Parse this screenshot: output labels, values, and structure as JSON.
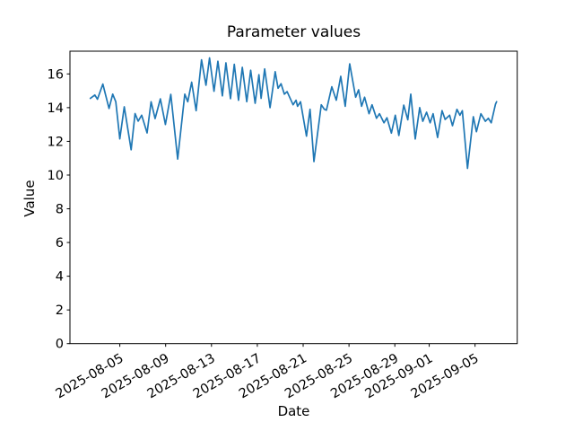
{
  "chart_data": {
    "type": "line",
    "title": "Parameter values",
    "xlabel": "Date",
    "ylabel": "Value",
    "line_color": "#1f77b4",
    "background_color": "#ffffff",
    "grid": false,
    "legend": "none",
    "x_axis": {
      "start_date": "2025-08-02",
      "xlim_days": [
        -1.35,
        37.68
      ],
      "ticks": [
        {
          "label": "2025-08-05",
          "offset_days": 3
        },
        {
          "label": "2025-08-09",
          "offset_days": 7
        },
        {
          "label": "2025-08-13",
          "offset_days": 11
        },
        {
          "label": "2025-08-17",
          "offset_days": 15
        },
        {
          "label": "2025-08-21",
          "offset_days": 19
        },
        {
          "label": "2025-08-25",
          "offset_days": 23
        },
        {
          "label": "2025-08-29",
          "offset_days": 27
        },
        {
          "label": "2025-09-01",
          "offset_days": 30
        },
        {
          "label": "2025-09-05",
          "offset_days": 34
        }
      ],
      "tick_label_rotation_deg": 30
    },
    "y_axis": {
      "ylim": [
        0,
        17.35
      ],
      "ticks": [
        0,
        2,
        4,
        6,
        8,
        10,
        12,
        14,
        16
      ]
    },
    "series": [
      {
        "name": "parameter-values",
        "t_days_from_start": [
          0.43,
          0.82,
          1.05,
          1.52,
          2.06,
          2.38,
          2.65,
          3.0,
          3.39,
          3.99,
          4.33,
          4.6,
          4.91,
          5.38,
          5.73,
          6.08,
          6.54,
          6.98,
          7.45,
          8.05,
          8.67,
          8.93,
          9.27,
          9.66,
          10.13,
          10.52,
          10.83,
          11.22,
          11.56,
          11.95,
          12.26,
          12.66,
          12.99,
          13.36,
          13.69,
          14.08,
          14.42,
          14.81,
          15.14,
          15.33,
          15.64,
          16.11,
          16.56,
          16.81,
          17.07,
          17.36,
          17.6,
          18.12,
          18.38,
          18.51,
          18.77,
          19.29,
          19.6,
          19.94,
          20.58,
          20.85,
          21.03,
          21.5,
          21.89,
          22.28,
          22.67,
          23.06,
          23.58,
          23.84,
          24.1,
          24.36,
          24.75,
          25.01,
          25.4,
          25.66,
          26.05,
          26.31,
          26.7,
          27.04,
          27.35,
          27.78,
          28.13,
          28.39,
          28.78,
          29.17,
          29.44,
          29.77,
          30.08,
          30.34,
          30.73,
          31.12,
          31.39,
          31.78,
          32.03,
          32.42,
          32.68,
          32.89,
          33.34,
          33.85,
          34.12,
          34.51,
          34.9,
          35.16,
          35.41,
          35.78,
          35.88
        ],
        "values": [
          14.55,
          14.75,
          14.5,
          15.4,
          13.95,
          14.8,
          14.35,
          12.15,
          14.05,
          11.5,
          13.65,
          13.2,
          13.55,
          12.5,
          14.35,
          13.35,
          14.52,
          13.0,
          14.79,
          10.95,
          14.8,
          14.35,
          15.51,
          13.82,
          16.84,
          15.33,
          16.95,
          14.97,
          16.75,
          14.7,
          16.66,
          14.53,
          16.57,
          14.44,
          16.39,
          14.35,
          16.22,
          14.26,
          15.95,
          14.55,
          16.3,
          14.0,
          16.13,
          15.15,
          15.42,
          14.8,
          14.95,
          14.17,
          14.44,
          14.08,
          14.35,
          12.31,
          13.9,
          10.8,
          14.17,
          13.9,
          13.85,
          15.24,
          14.44,
          15.86,
          14.08,
          16.6,
          14.62,
          15.06,
          14.08,
          14.62,
          13.64,
          14.17,
          13.37,
          13.64,
          13.1,
          13.4,
          12.49,
          13.55,
          12.35,
          14.15,
          13.28,
          14.8,
          12.14,
          14.0,
          13.19,
          13.73,
          13.1,
          13.64,
          12.23,
          13.82,
          13.3,
          13.55,
          12.93,
          13.9,
          13.55,
          13.82,
          10.4,
          13.46,
          12.57,
          13.64,
          13.19,
          13.37,
          13.1,
          14.2,
          14.35
        ]
      }
    ]
  }
}
